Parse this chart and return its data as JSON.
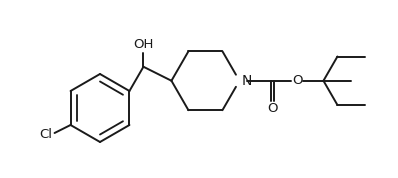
{
  "bg_color": "#ffffff",
  "line_color": "#1a1a1a",
  "line_width": 1.4,
  "font_size": 9.5,
  "label_OH": "OH",
  "label_Cl": "Cl",
  "label_N": "N",
  "label_O": "O",
  "label_O2": "O",
  "figsize": [
    3.98,
    1.78
  ],
  "dpi": 100
}
